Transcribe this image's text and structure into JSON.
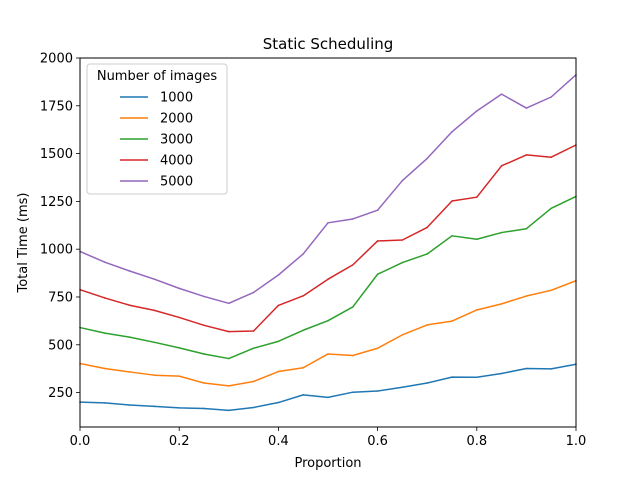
{
  "chart_data": {
    "type": "line",
    "title": "Static Scheduling",
    "xlabel": "Proportion",
    "ylabel": "Total Time (ms)",
    "xlim": [
      0,
      1
    ],
    "ylim": [
      70,
      2000
    ],
    "xticks": [
      0,
      0.2,
      0.4,
      0.6,
      0.8,
      1.0
    ],
    "xtick_labels": [
      "0.0",
      "0.2",
      "0.4",
      "0.6",
      "0.8",
      "1.0"
    ],
    "yticks": [
      250,
      500,
      750,
      1000,
      1250,
      1500,
      1750,
      2000
    ],
    "ytick_labels": [
      "250",
      "500",
      "750",
      "1000",
      "1250",
      "1500",
      "1750",
      "2000"
    ],
    "grid": false,
    "legend": {
      "title": "Number of images",
      "placement": "upper-left"
    },
    "x": [
      0,
      0.05,
      0.1,
      0.15,
      0.2,
      0.25,
      0.3,
      0.35,
      0.4,
      0.45,
      0.5,
      0.55,
      0.6,
      0.65,
      0.7,
      0.75,
      0.8,
      0.85,
      0.9,
      0.95,
      1.0
    ],
    "series": [
      {
        "name": "1000",
        "color": "#1f77b4",
        "values": [
          200,
          196,
          185,
          178,
          170,
          167,
          157,
          172,
          198,
          238,
          225,
          252,
          258,
          278,
          300,
          331,
          330,
          350,
          376,
          374,
          398
        ]
      },
      {
        "name": "2000",
        "color": "#ff7f0e",
        "values": [
          402,
          376,
          358,
          341,
          336,
          300,
          285,
          308,
          360,
          380,
          452,
          444,
          482,
          552,
          604,
          624,
          682,
          714,
          755,
          785,
          835
        ]
      },
      {
        "name": "3000",
        "color": "#2ca02c",
        "values": [
          590,
          561,
          540,
          513,
          484,
          452,
          428,
          482,
          518,
          576,
          626,
          698,
          869,
          930,
          975,
          1070,
          1052,
          1087,
          1107,
          1214,
          1276
        ]
      },
      {
        "name": "4000",
        "color": "#d62728",
        "values": [
          788,
          745,
          707,
          680,
          643,
          602,
          569,
          572,
          706,
          756,
          843,
          918,
          1043,
          1048,
          1114,
          1252,
          1272,
          1436,
          1493,
          1481,
          1545
        ]
      },
      {
        "name": "5000",
        "color": "#9467bd",
        "values": [
          988,
          932,
          886,
          843,
          795,
          753,
          717,
          774,
          865,
          975,
          1138,
          1158,
          1204,
          1359,
          1475,
          1614,
          1723,
          1811,
          1738,
          1796,
          1912
        ]
      }
    ]
  }
}
